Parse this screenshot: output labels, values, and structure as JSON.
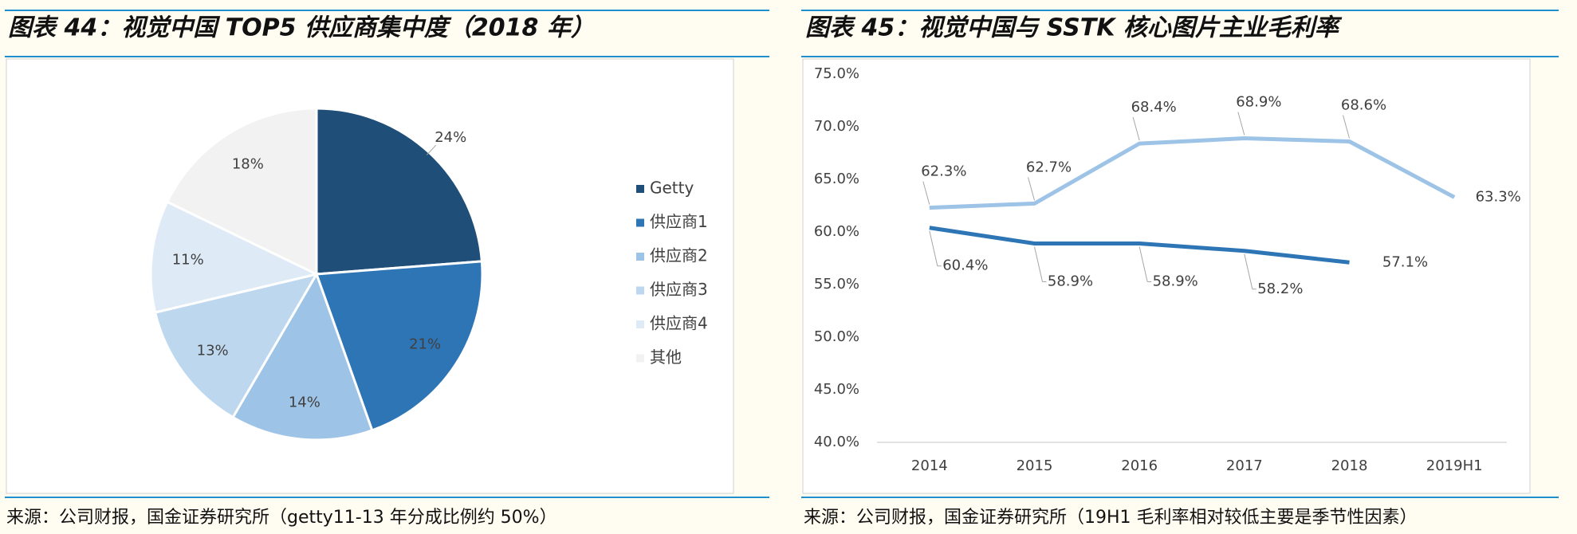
{
  "chart_data": [
    {
      "type": "pie",
      "title": "图表 44：视觉中国 TOP5 供应商集中度（2018 年）",
      "source": "来源：公司财报，国金证券研究所（getty11-13 年分成比例约 50%）",
      "categories": [
        "Getty",
        "供应商1",
        "供应商2",
        "供应商3",
        "供应商4",
        "其他"
      ],
      "values": [
        24,
        21,
        14,
        13,
        11,
        18
      ],
      "value_labels": [
        "24%",
        "21%",
        "14%",
        "13%",
        "11%",
        "18%"
      ],
      "colors": [
        "#1f4e79",
        "#2e75b6",
        "#9dc3e6",
        "#bdd7ee",
        "#deebf7",
        "#f2f2f2"
      ],
      "legend": "right"
    },
    {
      "type": "line",
      "title": "图表 45：视觉中国与 SSTK 核心图片主业毛利率",
      "source": "来源：公司财报，国金证券研究所（19H1 毛利率相对较低主要是季节性因素）",
      "categories": [
        "2014",
        "2015",
        "2016",
        "2017",
        "2018",
        "2019H1"
      ],
      "series": [
        {
          "color": "#9dc3e6",
          "values": [
            62.3,
            62.7,
            68.4,
            68.9,
            68.6,
            63.3
          ],
          "value_labels": [
            "62.3%",
            "62.7%",
            "68.4%",
            "68.9%",
            "68.6%",
            "63.3%"
          ]
        },
        {
          "color": "#2e75b6",
          "values": [
            60.4,
            58.9,
            58.9,
            58.2,
            57.1,
            null
          ],
          "value_labels": [
            "60.4%",
            "58.9%",
            "58.9%",
            "58.2%",
            "57.1%",
            null
          ]
        }
      ],
      "ylim": [
        40,
        75
      ],
      "yticks": [
        {
          "value": 40,
          "label": "40.0%"
        },
        {
          "value": 45,
          "label": "45.0%"
        },
        {
          "value": 50,
          "label": "50.0%"
        },
        {
          "value": 55,
          "label": "55.0%"
        },
        {
          "value": 60,
          "label": "60.0%"
        },
        {
          "value": 65,
          "label": "65.0%"
        },
        {
          "value": 70,
          "label": "70.0%"
        },
        {
          "value": 75,
          "label": "75.0%"
        }
      ],
      "grid": false
    }
  ]
}
